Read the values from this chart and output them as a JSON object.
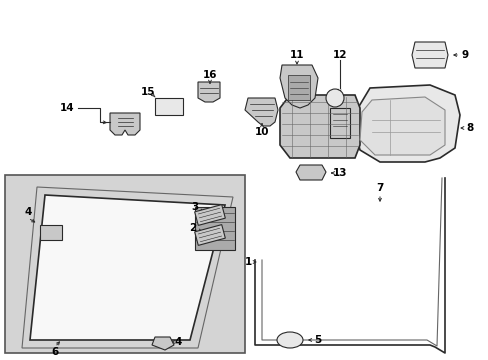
{
  "bg_color": "#ffffff",
  "line_color": "#2a2a2a",
  "label_color": "#000000",
  "gray_fill": "#c8c8c8",
  "light_fill": "#e8e8e8",
  "inset_fill": "#d8d8d8",
  "white_fill": "#f8f8f8"
}
